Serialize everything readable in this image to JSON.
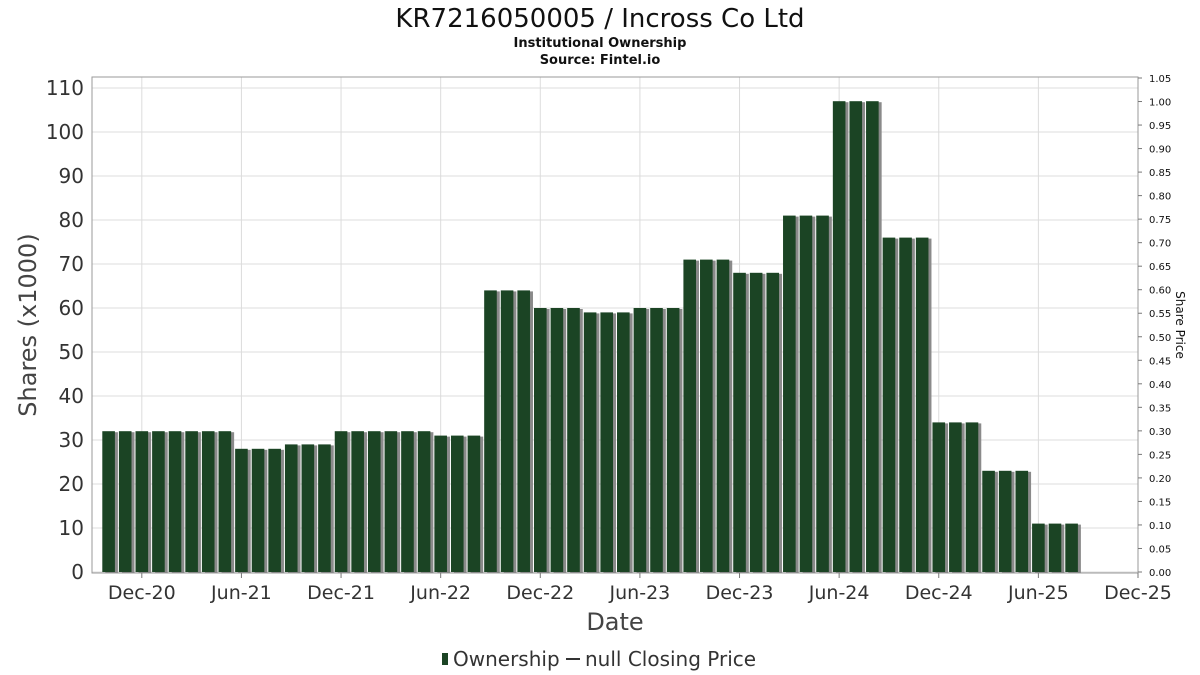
{
  "chart_data": {
    "type": "bar",
    "title": "KR7216050005 / Incross Co Ltd",
    "subtitle": "Institutional Ownership",
    "source": "Source: Fintel.io",
    "xlabel": "Date",
    "ylabel": "Shares (x1000)",
    "y2label": "Share Price",
    "ylim": [
      0,
      110
    ],
    "y2lim": [
      0,
      1.05
    ],
    "y_ticks": [
      "0",
      "10",
      "20",
      "30",
      "40",
      "50",
      "60",
      "70",
      "80",
      "90",
      "100",
      "110"
    ],
    "y2_ticks": [
      "0.00",
      "0.05",
      "0.10",
      "0.15",
      "0.20",
      "0.25",
      "0.30",
      "0.35",
      "0.40",
      "0.45",
      "0.50",
      "0.55",
      "0.60",
      "0.65",
      "0.70",
      "0.75",
      "0.80",
      "0.85",
      "0.90",
      "0.95",
      "1.00",
      "1.05"
    ],
    "x_ticks": [
      "Dec-20",
      "Jun-21",
      "Dec-21",
      "Jun-22",
      "Dec-22",
      "Jun-23",
      "Dec-23",
      "Jun-24",
      "Dec-24",
      "Jun-25",
      "Dec-25"
    ],
    "x_range": [
      "2020-09",
      "2025-12"
    ],
    "grid": true,
    "legend_position": "bottom",
    "series": [
      {
        "name": "Ownership",
        "color": "#1b4424",
        "values": [
          {
            "date": "2020-10",
            "value": 32
          },
          {
            "date": "2020-11",
            "value": 32
          },
          {
            "date": "2020-12",
            "value": 32
          },
          {
            "date": "2021-01",
            "value": 32
          },
          {
            "date": "2021-02",
            "value": 32
          },
          {
            "date": "2021-03",
            "value": 32
          },
          {
            "date": "2021-04",
            "value": 32
          },
          {
            "date": "2021-05",
            "value": 32
          },
          {
            "date": "2021-06",
            "value": 28
          },
          {
            "date": "2021-07",
            "value": 28
          },
          {
            "date": "2021-08",
            "value": 28
          },
          {
            "date": "2021-09",
            "value": 29
          },
          {
            "date": "2021-10",
            "value": 29
          },
          {
            "date": "2021-11",
            "value": 29
          },
          {
            "date": "2021-12",
            "value": 32
          },
          {
            "date": "2022-01",
            "value": 32
          },
          {
            "date": "2022-02",
            "value": 32
          },
          {
            "date": "2022-03",
            "value": 32
          },
          {
            "date": "2022-04",
            "value": 32
          },
          {
            "date": "2022-05",
            "value": 32
          },
          {
            "date": "2022-06",
            "value": 31
          },
          {
            "date": "2022-07",
            "value": 31
          },
          {
            "date": "2022-08",
            "value": 31
          },
          {
            "date": "2022-09",
            "value": 64
          },
          {
            "date": "2022-10",
            "value": 64
          },
          {
            "date": "2022-11",
            "value": 64
          },
          {
            "date": "2022-12",
            "value": 60
          },
          {
            "date": "2023-01",
            "value": 60
          },
          {
            "date": "2023-02",
            "value": 60
          },
          {
            "date": "2023-03",
            "value": 59
          },
          {
            "date": "2023-04",
            "value": 59
          },
          {
            "date": "2023-05",
            "value": 59
          },
          {
            "date": "2023-06",
            "value": 60
          },
          {
            "date": "2023-07",
            "value": 60
          },
          {
            "date": "2023-08",
            "value": 60
          },
          {
            "date": "2023-09",
            "value": 71
          },
          {
            "date": "2023-10",
            "value": 71
          },
          {
            "date": "2023-11",
            "value": 71
          },
          {
            "date": "2023-12",
            "value": 68
          },
          {
            "date": "2024-01",
            "value": 68
          },
          {
            "date": "2024-02",
            "value": 68
          },
          {
            "date": "2024-03",
            "value": 81
          },
          {
            "date": "2024-04",
            "value": 81
          },
          {
            "date": "2024-05",
            "value": 81
          },
          {
            "date": "2024-06",
            "value": 107
          },
          {
            "date": "2024-07",
            "value": 107
          },
          {
            "date": "2024-08",
            "value": 107
          },
          {
            "date": "2024-09",
            "value": 76
          },
          {
            "date": "2024-10",
            "value": 76
          },
          {
            "date": "2024-11",
            "value": 76
          },
          {
            "date": "2024-12",
            "value": 34
          },
          {
            "date": "2025-01",
            "value": 34
          },
          {
            "date": "2025-02",
            "value": 34
          },
          {
            "date": "2025-03",
            "value": 23
          },
          {
            "date": "2025-04",
            "value": 23
          },
          {
            "date": "2025-05",
            "value": 23
          },
          {
            "date": "2025-06",
            "value": 11
          },
          {
            "date": "2025-07",
            "value": 11
          },
          {
            "date": "2025-08",
            "value": 11
          }
        ]
      },
      {
        "name": "null Closing Price",
        "color": "#333333",
        "values": []
      }
    ]
  }
}
